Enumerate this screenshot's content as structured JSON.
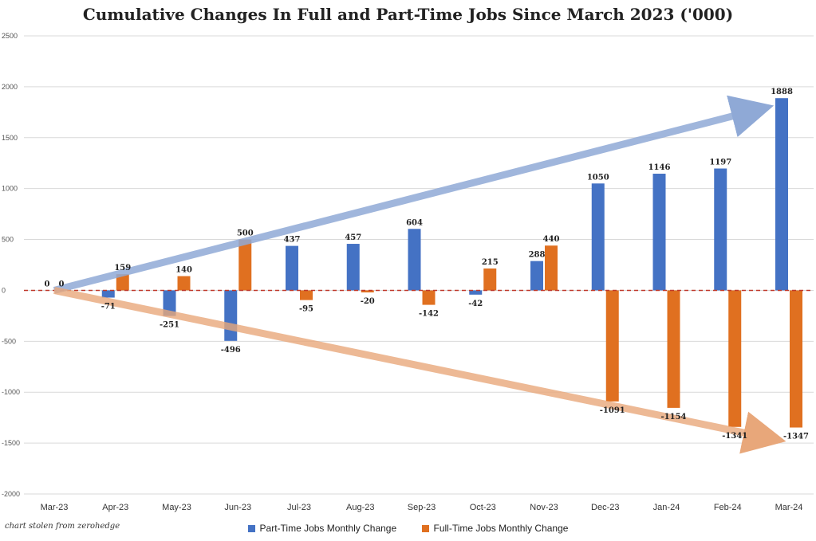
{
  "chart_data": {
    "type": "bar",
    "title": "Cumulative Changes In Full and Part-Time Jobs Since March 2023 ('000)",
    "categories": [
      "Mar-23",
      "Apr-23",
      "May-23",
      "Jun-23",
      "Jul-23",
      "Aug-23",
      "Sep-23",
      "Oct-23",
      "Nov-23",
      "Dec-23",
      "Jan-24",
      "Feb-24",
      "Mar-24"
    ],
    "series": [
      {
        "name": "Part-Time Jobs Monthly Change",
        "color": "#4472c4",
        "values": [
          0,
          -71,
          -251,
          -496,
          437,
          457,
          604,
          -42,
          288,
          1050,
          1146,
          1197,
          1888
        ]
      },
      {
        "name": "Full-Time Jobs Monthly Change",
        "color": "#e07020",
        "values": [
          0,
          159,
          140,
          500,
          -95,
          -20,
          -142,
          215,
          440,
          -1091,
          -1154,
          -1341,
          -1347
        ]
      }
    ],
    "ylim": [
      -2000,
      2500
    ],
    "yticks": [
      2500,
      2000,
      1500,
      1000,
      500,
      0,
      -500,
      -1000,
      -1500,
      -2000
    ],
    "ytick_labels": [
      "2500",
      "2000",
      "1500",
      "1000",
      "500",
      "0",
      "-500",
      "-1000",
      "-1500",
      "-2000"
    ],
    "grid": true,
    "legend_position": "bottom",
    "zero_line": "dashed-red",
    "trend_arrows": [
      {
        "direction": "up",
        "color": "#8fa9d6"
      },
      {
        "direction": "down",
        "color": "#e8a77a"
      }
    ]
  },
  "credit": "chart stolen from zerohedge"
}
